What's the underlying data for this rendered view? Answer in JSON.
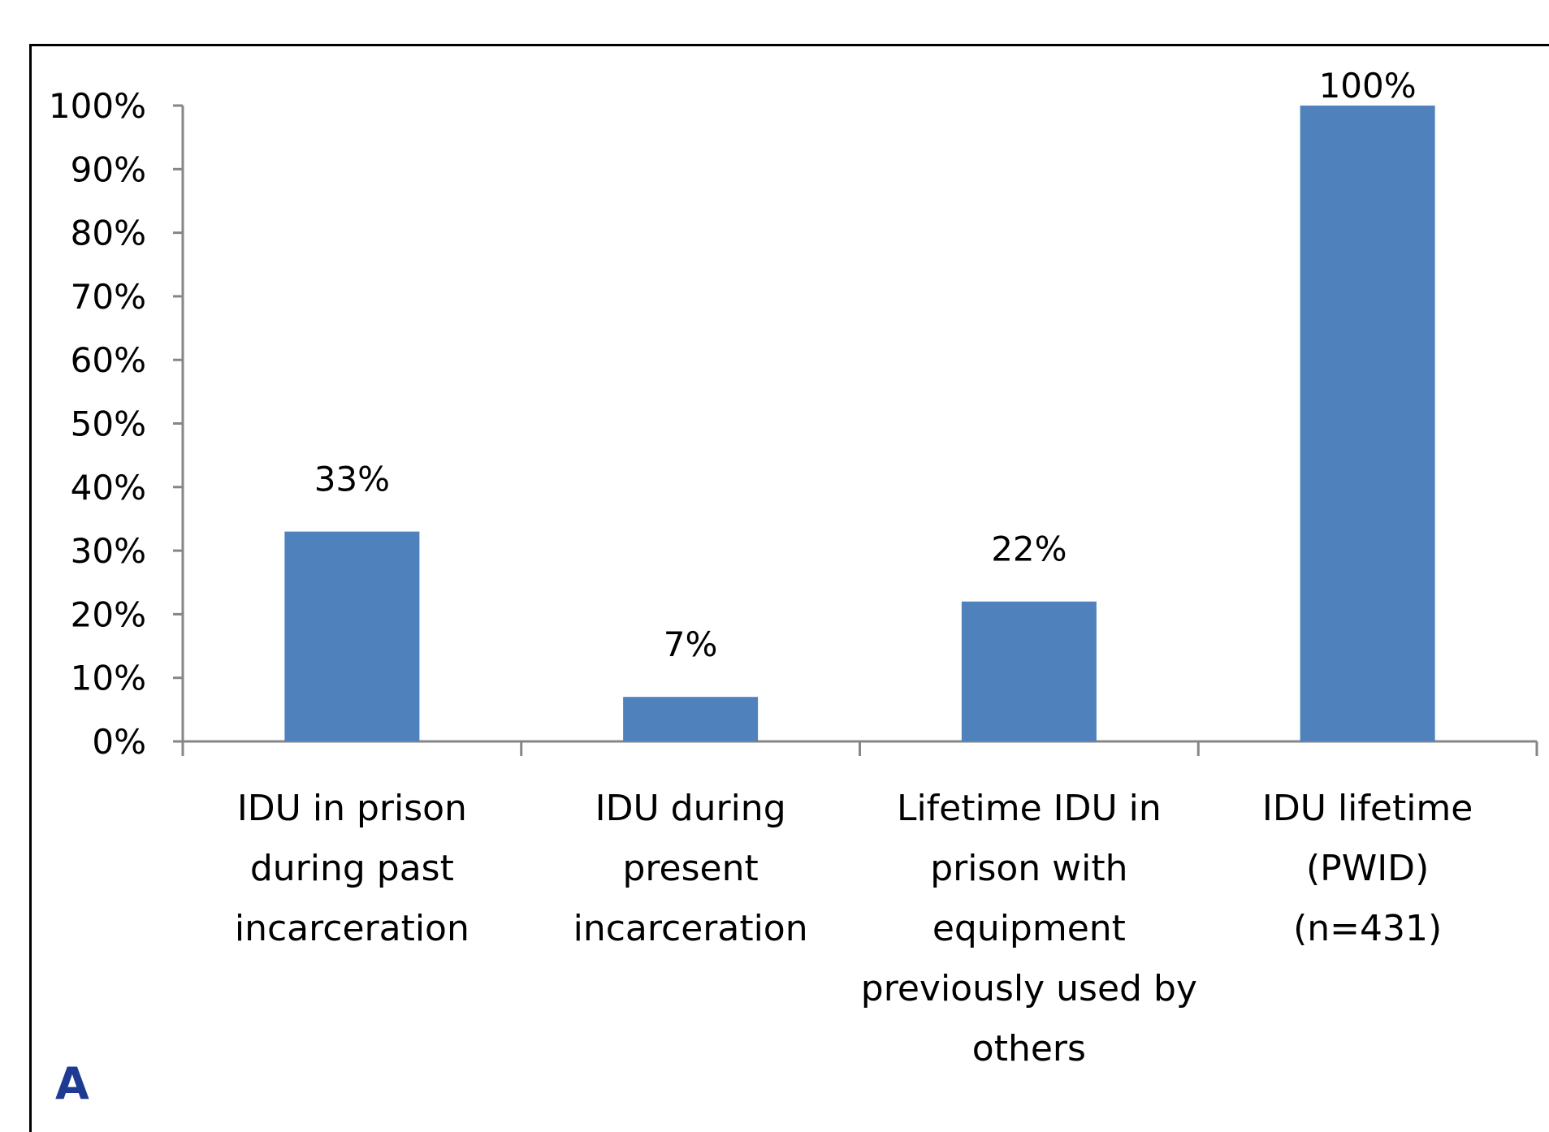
{
  "panel_label": "A",
  "colors": {
    "bar": "#4F81BD",
    "axis": "#868686",
    "panel_label": "#1F3A93"
  },
  "chart_data": {
    "type": "bar",
    "title": "",
    "xlabel": "",
    "ylabel": "",
    "ylim": [
      0,
      100
    ],
    "yticks": [
      "0%",
      "10%",
      "20%",
      "30%",
      "40%",
      "50%",
      "60%",
      "70%",
      "80%",
      "90%",
      "100%"
    ],
    "grid": false,
    "legend": "none",
    "categories": [
      "IDU in prison during past incarceration",
      "IDU during present incarceration",
      "Lifetime IDU in prison with equipment previously used by others",
      "IDU lifetime (PWID) (n=431)"
    ],
    "category_lines": [
      [
        "IDU in prison",
        "during past",
        "incarceration"
      ],
      [
        "IDU during",
        "present",
        "incarceration"
      ],
      [
        "Lifetime IDU in",
        "prison with",
        "equipment",
        "previously used by",
        "others"
      ],
      [
        "IDU lifetime",
        "(PWID)",
        "(n=431)"
      ]
    ],
    "values": [
      33,
      7,
      22,
      100
    ],
    "data_labels": [
      "33%",
      "7%",
      "22%",
      "100%"
    ]
  }
}
